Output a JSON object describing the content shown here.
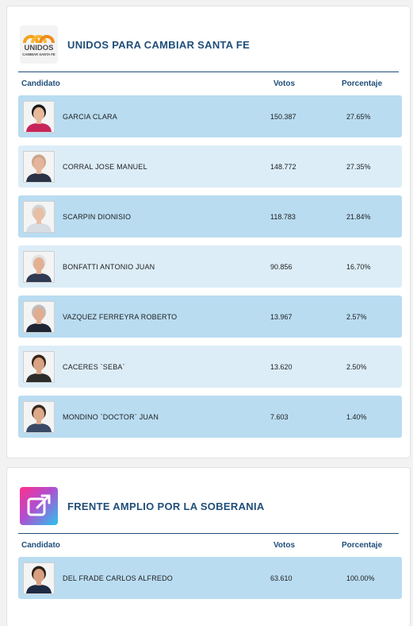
{
  "columns": {
    "candidate": "Candidato",
    "votes": "Votos",
    "percent": "Porcentaje"
  },
  "parties": [
    {
      "name": "UNIDOS PARA CAMBIAR SANTA FE",
      "logo_text": {
        "line1": "UNIDOS",
        "line2": "CAMBIAR SANTA FE"
      },
      "logo_colors": {
        "arc": "#f5a21b",
        "text": "#4a4a4a"
      },
      "candidates": [
        {
          "name": "GARCIA CLARA",
          "votes": "150.387",
          "percent": "27.65%",
          "hair": "#1b1b1b",
          "skin": "#e8b89a",
          "shirt": "#c7245a"
        },
        {
          "name": "CORRAL JOSE MANUEL",
          "votes": "148.772",
          "percent": "27.35%",
          "hair": "#c9a58b",
          "skin": "#e4b59a",
          "shirt": "#2a3347"
        },
        {
          "name": "SCARPIN DIONISIO",
          "votes": "118.783",
          "percent": "21.84%",
          "hair": "#d4d4d4",
          "skin": "#e7bfa5",
          "shirt": "#d8dde3"
        },
        {
          "name": "BONFATTI ANTONIO JUAN",
          "votes": "90.856",
          "percent": "16.70%",
          "hair": "#e2e2e2",
          "skin": "#e2b194",
          "shirt": "#2f3b52"
        },
        {
          "name": "VAZQUEZ FERREYRA ROBERTO",
          "votes": "13.967",
          "percent": "2.57%",
          "hair": "#bdbdbd",
          "skin": "#e0ad90",
          "shirt": "#1f2533"
        },
        {
          "name": "CACERES `SEBA`",
          "votes": "13.620",
          "percent": "2.50%",
          "hair": "#3a2618",
          "skin": "#d9a383",
          "shirt": "#2c2c2c"
        },
        {
          "name": "MONDINO `DOCTOR` JUAN",
          "votes": "7.603",
          "percent": "1.40%",
          "hair": "#3b2a20",
          "skin": "#dca98a",
          "shirt": "#3a4a66"
        }
      ]
    },
    {
      "name": "FRENTE AMPLIO POR LA SOBERANIA",
      "logo_icon": "external-link-icon",
      "candidates": [
        {
          "name": "DEL FRADE CARLOS ALFREDO",
          "votes": "63.610",
          "percent": "100.00%",
          "hair": "#2e2015",
          "skin": "#d8a080",
          "shirt": "#1e2a44"
        }
      ]
    }
  ]
}
